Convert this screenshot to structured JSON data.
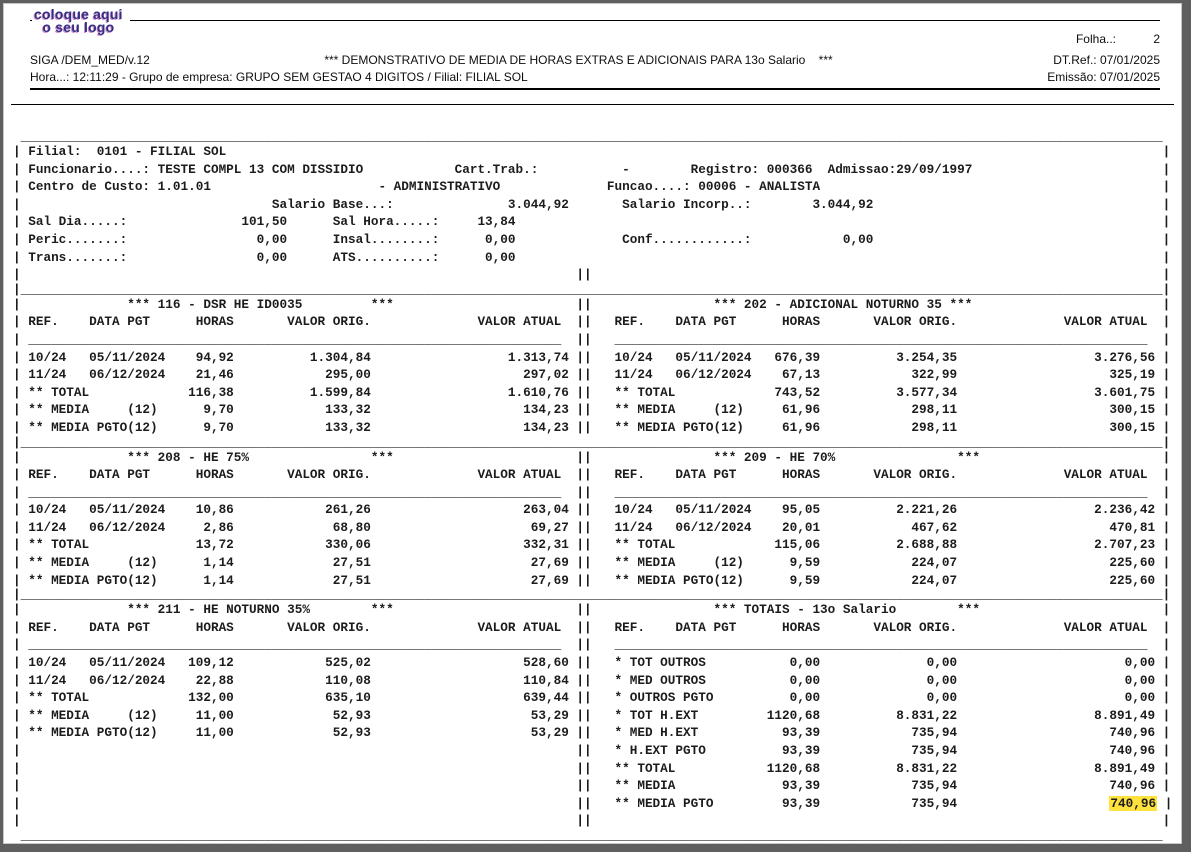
{
  "header": {
    "logo_line1": "coloque aqui",
    "logo_line2": "o seu logo",
    "app_id": "SIGA /DEM_MED/v.12",
    "title": "*** DEMONSTRATIVO DE MEDIA DE HORAS EXTRAS E ADICIONAIS PARA 13o Salario    ***",
    "folha_label": "Folha..:",
    "folha_value": "2",
    "dtref": "DT.Ref.: 07/01/2025",
    "emissao": "Emissão: 07/01/2025",
    "hora_line": "Hora...: 12:11:29 - Grupo de empresa: GRUPO SEM GESTAO 4 DIGITOS / Filial: FILIAL SOL"
  },
  "report": {
    "highlight_color": "#ffe23e",
    "column_headers": [
      "REF.",
      "DATA PGT",
      "HORAS",
      "VALOR ORIG.",
      "VALOR ATUAL"
    ],
    "lines": [
      {
        "rule": "outer"
      },
      {
        "cols": [
          [
            2,
            "Filial:"
          ],
          [
            11,
            "0101 - FILIAL SOL"
          ]
        ]
      },
      {
        "cols": [
          [
            2,
            "Funcionario....:"
          ],
          [
            19,
            "TESTE COMPL 13 COM DISSIDIO"
          ],
          [
            58,
            "Cart.Trab.:"
          ],
          [
            80,
            "-"
          ],
          [
            89,
            "Registro: 000366"
          ],
          [
            107,
            "Admissao:29/09/1997"
          ]
        ]
      },
      {
        "cols": [
          [
            2,
            "Centro de Custo:"
          ],
          [
            19,
            "1.01.01"
          ],
          [
            48,
            "- ADMINISTRATIVO"
          ],
          [
            78,
            "Funcao....:"
          ],
          [
            90,
            "00006 - ANALISTA"
          ]
        ]
      },
      {
        "cols": [
          [
            34,
            "Salario Base...:"
          ],
          [
            65,
            "3.044,92"
          ],
          [
            80,
            "Salario Incorp..:"
          ],
          [
            105,
            "3.044,92"
          ]
        ]
      },
      {
        "cols": [
          [
            2,
            "Sal Dia.....:"
          ],
          [
            30,
            "101,50"
          ],
          [
            42,
            "Sal Hora.....:"
          ],
          [
            61,
            "13,84"
          ]
        ]
      },
      {
        "cols": [
          [
            2,
            "Peric.......:"
          ],
          [
            32,
            "0,00"
          ],
          [
            42,
            "Insal........:"
          ],
          [
            62,
            "0,00"
          ],
          [
            80,
            "Conf............:"
          ],
          [
            109,
            "0,00"
          ]
        ]
      },
      {
        "cols": [
          [
            2,
            "Trans.......:"
          ],
          [
            32,
            "0,00"
          ],
          [
            42,
            "ATS..........:"
          ],
          [
            62,
            "0,00"
          ]
        ]
      },
      {
        "rule": "blank"
      },
      {
        "rule": "inner"
      },
      {
        "cols": [
          [
            15,
            "*** 116 - DSR HE ID0035"
          ],
          [
            47,
            "***"
          ],
          [
            74,
            "||"
          ],
          [
            92,
            "*** 202 - ADICIONAL NOTURNO 35 ***"
          ]
        ]
      },
      {
        "rule": "header"
      },
      {
        "rule": "cols"
      },
      {
        "row": {
          "l": [
            "10/24",
            "05/11/2024",
            "94,92",
            "1.304,84",
            "1.313,74"
          ],
          "r": [
            "10/24",
            "05/11/2024",
            "676,39",
            "3.254,35",
            "3.276,56"
          ]
        }
      },
      {
        "row": {
          "l": [
            "11/24",
            "06/12/2024",
            "21,46",
            "295,00",
            "297,02"
          ],
          "r": [
            "11/24",
            "06/12/2024",
            "67,13",
            "322,99",
            "325,19"
          ]
        }
      },
      {
        "row": {
          "l": [
            "** TOTAL",
            "",
            "116,38",
            "1.599,84",
            "1.610,76"
          ],
          "r": [
            "** TOTAL",
            "",
            "743,52",
            "3.577,34",
            "3.601,75"
          ]
        }
      },
      {
        "row": {
          "l": [
            "** MEDIA     (12)",
            "",
            "9,70",
            "133,32",
            "134,23"
          ],
          "r": [
            "** MEDIA     (12)",
            "",
            "61,96",
            "298,11",
            "300,15"
          ]
        }
      },
      {
        "row": {
          "l": [
            "** MEDIA PGTO(12)",
            "",
            "9,70",
            "133,32",
            "134,23"
          ],
          "r": [
            "** MEDIA PGTO(12)",
            "",
            "61,96",
            "298,11",
            "300,15"
          ]
        }
      },
      {
        "rule": "inner"
      },
      {
        "cols": [
          [
            15,
            "*** 208 - HE 75%"
          ],
          [
            47,
            "***"
          ],
          [
            74,
            "||"
          ],
          [
            92,
            "*** 209 - HE 70%"
          ],
          [
            124,
            "***"
          ]
        ]
      },
      {
        "rule": "header"
      },
      {
        "rule": "cols"
      },
      {
        "row": {
          "l": [
            "10/24",
            "05/11/2024",
            "10,86",
            "261,26",
            "263,04"
          ],
          "r": [
            "10/24",
            "05/11/2024",
            "95,05",
            "2.221,26",
            "2.236,42"
          ]
        }
      },
      {
        "row": {
          "l": [
            "11/24",
            "06/12/2024",
            "2,86",
            "68,80",
            "69,27"
          ],
          "r": [
            "11/24",
            "06/12/2024",
            "20,01",
            "467,62",
            "470,81"
          ]
        }
      },
      {
        "row": {
          "l": [
            "** TOTAL",
            "",
            "13,72",
            "330,06",
            "332,31"
          ],
          "r": [
            "** TOTAL",
            "",
            "115,06",
            "2.688,88",
            "2.707,23"
          ]
        }
      },
      {
        "row": {
          "l": [
            "** MEDIA     (12)",
            "",
            "1,14",
            "27,51",
            "27,69"
          ],
          "r": [
            "** MEDIA     (12)",
            "",
            "9,59",
            "224,07",
            "225,60"
          ]
        }
      },
      {
        "row": {
          "l": [
            "** MEDIA PGTO(12)",
            "",
            "1,14",
            "27,51",
            "27,69"
          ],
          "r": [
            "** MEDIA PGTO(12)",
            "",
            "9,59",
            "224,07",
            "225,60"
          ]
        }
      },
      {
        "rule": "inner"
      },
      {
        "cols": [
          [
            15,
            "*** 211 - HE NOTURNO 35%"
          ],
          [
            47,
            "***"
          ],
          [
            74,
            "||"
          ],
          [
            92,
            "*** TOTAIS - 13o Salario"
          ],
          [
            124,
            "***"
          ]
        ]
      },
      {
        "rule": "header"
      },
      {
        "rule": "cols"
      },
      {
        "row": {
          "l": [
            "10/24",
            "05/11/2024",
            "109,12",
            "525,02",
            "528,60"
          ],
          "r": [
            "* TOT OUTROS",
            "",
            "0,00",
            "0,00",
            "0,00"
          ]
        }
      },
      {
        "row": {
          "l": [
            "11/24",
            "06/12/2024",
            "22,88",
            "110,08",
            "110,84"
          ],
          "r": [
            "* MED OUTROS",
            "",
            "0,00",
            "0,00",
            "0,00"
          ]
        }
      },
      {
        "row": {
          "l": [
            "** TOTAL",
            "",
            "132,00",
            "635,10",
            "639,44"
          ],
          "r": [
            "* OUTROS PGTO",
            "",
            "0,00",
            "0,00",
            "0,00"
          ]
        }
      },
      {
        "row": {
          "l": [
            "** MEDIA     (12)",
            "",
            "11,00",
            "52,93",
            "53,29"
          ],
          "r": [
            "* TOT H.EXT",
            "",
            "1120,68",
            "8.831,22",
            "8.891,49"
          ]
        }
      },
      {
        "row": {
          "l": [
            "** MEDIA PGTO(12)",
            "",
            "11,00",
            "52,93",
            "53,29"
          ],
          "r": [
            "* MED H.EXT",
            "",
            "93,39",
            "735,94",
            "740,96"
          ]
        }
      },
      {
        "row": {
          "l": null,
          "r": [
            "* H.EXT PGTO",
            "",
            "93,39",
            "735,94",
            "740,96"
          ]
        }
      },
      {
        "row": {
          "l": null,
          "r": [
            "** TOTAL",
            "",
            "1120,68",
            "8.831,22",
            "8.891,49"
          ]
        }
      },
      {
        "row": {
          "l": null,
          "r": [
            "** MEDIA",
            "",
            "93,39",
            "735,94",
            "740,96"
          ]
        }
      },
      {
        "row": {
          "l": null,
          "r": [
            "** MEDIA PGTO",
            "",
            "93,39",
            "735,94",
            "740,96"
          ]
        },
        "hl": true
      },
      {
        "rule": "blank"
      },
      {
        "rule": "outer"
      }
    ]
  }
}
